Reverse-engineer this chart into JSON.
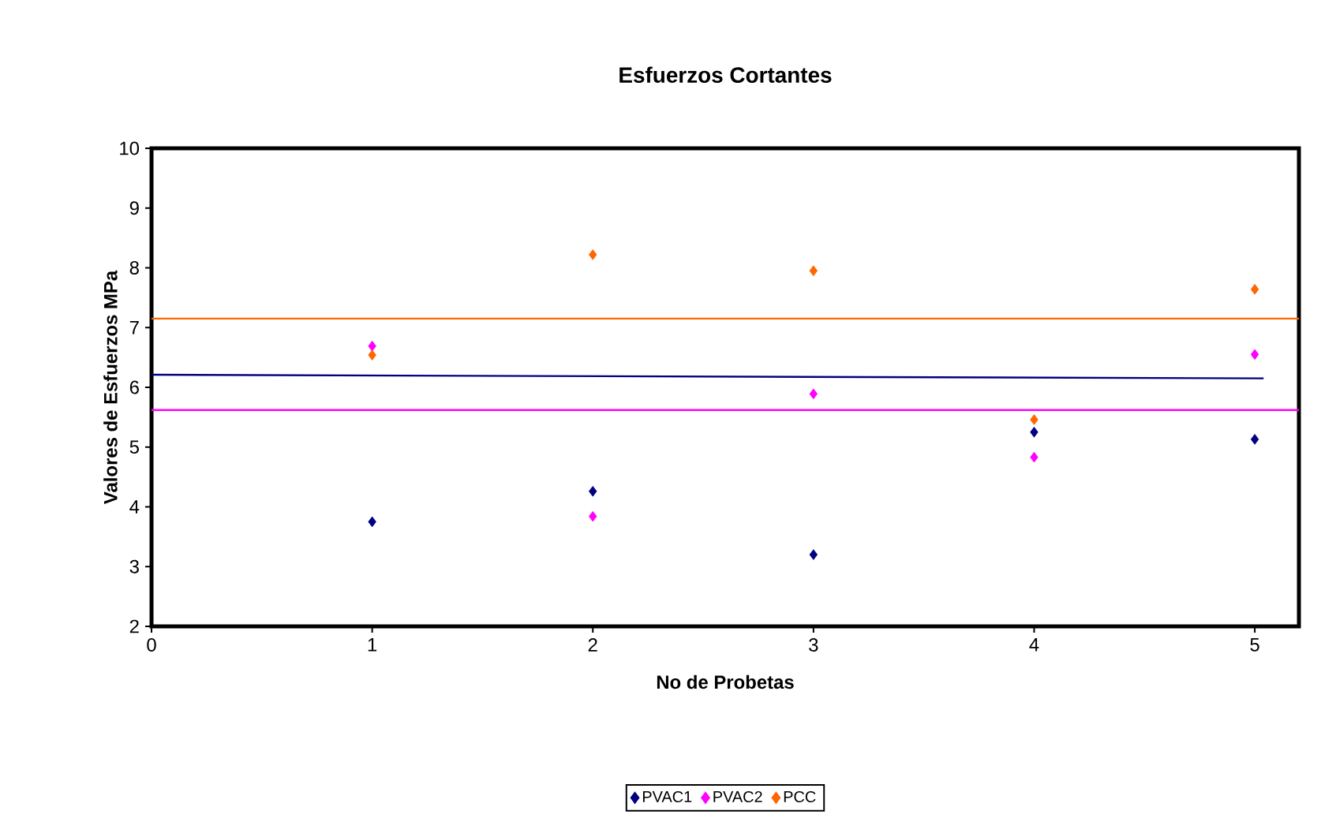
{
  "chart_data": {
    "type": "scatter",
    "title": "Esfuerzos Cortantes",
    "xlabel": "No de Probetas",
    "ylabel": "Valores de Esfuerzos MPa",
    "x": [
      1,
      2,
      3,
      4,
      5
    ],
    "series": [
      {
        "name": "PVAC1",
        "color": "#000080",
        "values": [
          3.75,
          4.26,
          3.2,
          5.25,
          5.13
        ]
      },
      {
        "name": "PVAC2",
        "color": "#ff00ff",
        "values": [
          6.69,
          3.84,
          5.89,
          4.83,
          6.55
        ]
      },
      {
        "name": "PCC",
        "color": "#ff6600",
        "values": [
          6.54,
          8.22,
          7.95,
          5.46,
          7.64
        ]
      },
      {
        "type": "line",
        "marker": "none",
        "color": "#000080",
        "x": [
          0,
          5.04
        ],
        "values": [
          6.21,
          6.15
        ]
      }
    ],
    "ref_lines": [
      {
        "axis": "y",
        "value": 7.15,
        "color": "#ff6600"
      },
      {
        "axis": "y",
        "value": 5.62,
        "color": "#ff00ff"
      }
    ],
    "xlim": [
      0,
      5.2
    ],
    "xticks": [
      0,
      1,
      2,
      3,
      4,
      5
    ],
    "ylim": [
      2,
      10
    ],
    "yticks": [
      2,
      3,
      4,
      5,
      6,
      7,
      8,
      9,
      10
    ],
    "marker": "diamond",
    "legend": "bottom",
    "grid": false
  }
}
